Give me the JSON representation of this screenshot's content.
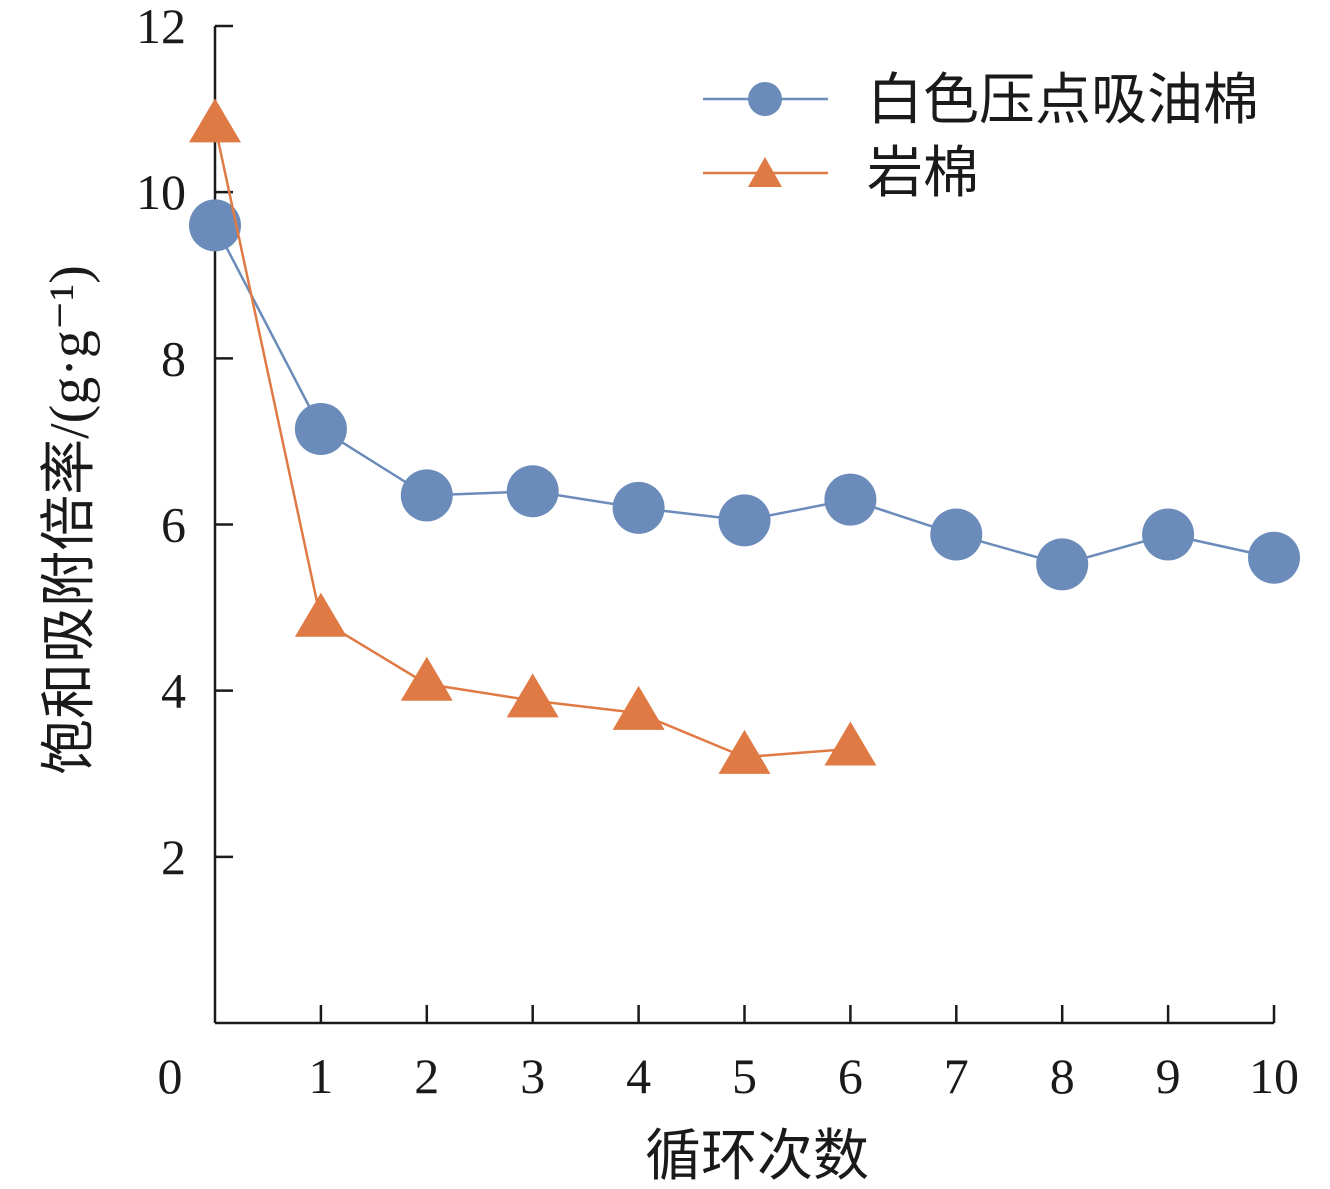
{
  "chart_data": {
    "type": "line",
    "xlabel": "循环次数",
    "ylabel": "饱和吸附倍率/(g·g⁻¹)",
    "xlim": [
      0,
      10
    ],
    "ylim": [
      0,
      12
    ],
    "xticks": [
      "0",
      "1",
      "2",
      "3",
      "4",
      "5",
      "6",
      "7",
      "8",
      "9",
      "10"
    ],
    "yticks": [
      "2",
      "4",
      "6",
      "8",
      "10",
      "12"
    ],
    "grid": false,
    "legend_position": "top-right",
    "series": [
      {
        "name": "白色压点吸油棉",
        "marker": "circle",
        "color": "#6b8cba",
        "x": [
          0,
          1,
          2,
          3,
          4,
          5,
          6,
          7,
          8,
          9,
          10
        ],
        "y": [
          9.6,
          7.15,
          6.35,
          6.4,
          6.2,
          6.05,
          6.3,
          5.88,
          5.52,
          5.88,
          5.6
        ]
      },
      {
        "name": "岩棉",
        "marker": "triangle",
        "color": "#e07a45",
        "x": [
          0,
          1,
          2,
          3,
          4,
          5,
          6
        ],
        "y": [
          10.8,
          4.85,
          4.08,
          3.88,
          3.73,
          3.2,
          3.3
        ]
      }
    ]
  }
}
